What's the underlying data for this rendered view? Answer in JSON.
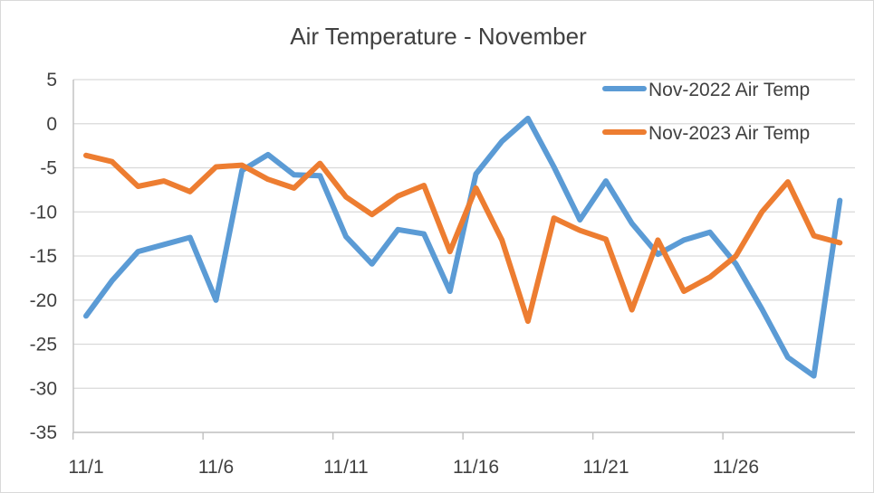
{
  "chart_data": {
    "type": "line",
    "title": "Air Temperature - November",
    "xlabel": "",
    "ylabel": "",
    "ylim": [
      -35,
      5
    ],
    "y_ticks": [
      5,
      0,
      -5,
      -10,
      -15,
      -20,
      -25,
      -30,
      -35
    ],
    "y_tick_labels": [
      "5",
      "0",
      "-5",
      "-10",
      "-15",
      "-20",
      "-25",
      "-30",
      "-35"
    ],
    "x": [
      "11/1",
      "11/2",
      "11/3",
      "11/4",
      "11/5",
      "11/6",
      "11/7",
      "11/8",
      "11/9",
      "11/10",
      "11/11",
      "11/12",
      "11/13",
      "11/14",
      "11/15",
      "11/16",
      "11/17",
      "11/18",
      "11/19",
      "11/20",
      "11/21",
      "11/22",
      "11/23",
      "11/24",
      "11/25",
      "11/26",
      "11/27",
      "11/28",
      "11/29",
      "11/30"
    ],
    "x_tick_labels": [
      "11/1",
      "11/6",
      "11/11",
      "11/16",
      "11/21",
      "11/26"
    ],
    "grid": "horizontal",
    "legend_position": "top-right",
    "series": [
      {
        "name": "Nov-2022 Air Temp",
        "color": "#5B9BD5",
        "values": [
          -21.8,
          -17.8,
          -14.5,
          -13.7,
          -12.9,
          -20.0,
          -5.3,
          -3.5,
          -5.8,
          -5.9,
          -12.8,
          -15.9,
          -12.0,
          -12.5,
          -19.0,
          -5.7,
          -2.0,
          0.6,
          -4.9,
          -10.9,
          -6.5,
          -11.3,
          -14.8,
          -13.2,
          -12.3,
          -15.9,
          -21.0,
          -26.5,
          -28.6,
          -8.7
        ]
      },
      {
        "name": "Nov-2023 Air Temp",
        "color": "#ED7D31",
        "values": [
          -3.6,
          -4.3,
          -7.1,
          -6.5,
          -7.7,
          -4.9,
          -4.7,
          -6.3,
          -7.3,
          -4.5,
          -8.3,
          -10.3,
          -8.2,
          -7.0,
          -14.5,
          -7.3,
          -13.2,
          -22.4,
          -10.7,
          -12.1,
          -13.1,
          -21.1,
          -13.2,
          -19.0,
          -17.4,
          -15.0,
          -10.0,
          -6.6,
          -12.7,
          -13.5
        ]
      }
    ]
  }
}
